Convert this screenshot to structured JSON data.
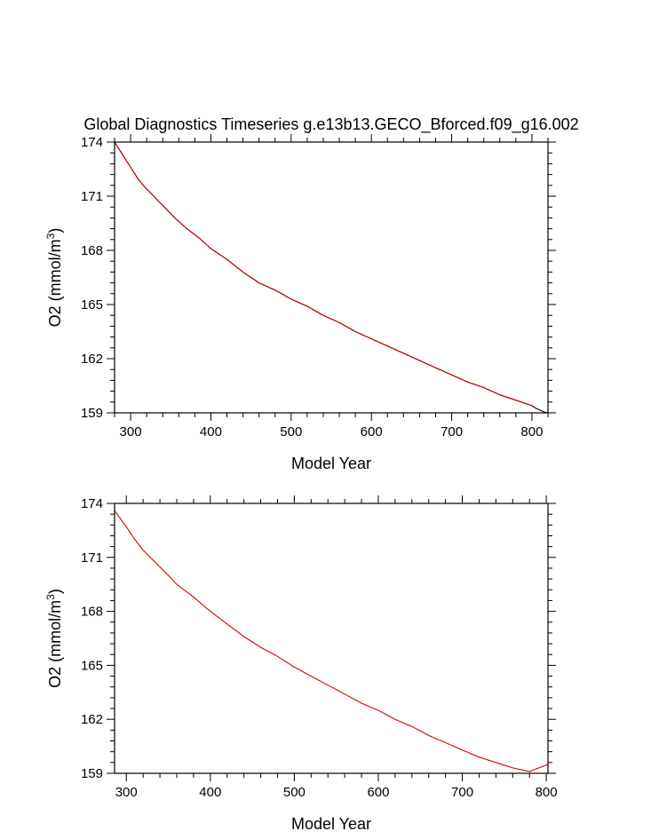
{
  "figure": {
    "title": "Global Diagnostics Timeseries g.e13b13.GECO_Bforced.f09_g16.002"
  },
  "chart_data": [
    {
      "type": "line",
      "xlabel": "Model Year",
      "ylabel_main": "O2 (mmol/m",
      "ylabel_sup": "3",
      "ylabel_tail": ")",
      "xlim": [
        280,
        820
      ],
      "ylim": [
        159,
        174
      ],
      "xticks": [
        300,
        400,
        500,
        600,
        700,
        800
      ],
      "yticks": [
        159,
        162,
        165,
        168,
        171,
        174
      ],
      "grid": false,
      "series": [
        {
          "color": "#000000",
          "x": [
            280,
            290,
            300,
            310,
            320,
            340,
            355,
            370,
            385,
            400,
            420,
            440,
            460,
            480,
            500,
            520,
            540,
            560,
            580,
            600,
            620,
            640,
            660,
            680,
            700,
            720,
            740,
            760,
            780,
            800,
            805,
            810,
            815,
            820
          ],
          "y": [
            174.0,
            173.3,
            172.6,
            171.9,
            171.4,
            170.5,
            169.8,
            169.2,
            168.7,
            168.1,
            167.5,
            166.8,
            166.2,
            165.8,
            165.3,
            164.9,
            164.4,
            164.0,
            163.5,
            163.1,
            162.7,
            162.3,
            161.9,
            161.5,
            161.1,
            160.7,
            160.4,
            160.0,
            159.7,
            159.4,
            159.25,
            159.15,
            159.05,
            159.0
          ]
        },
        {
          "color": "#cc0000",
          "x": [
            280,
            290,
            300,
            310,
            320,
            340,
            355,
            370,
            385,
            400,
            420,
            440,
            460,
            480,
            500,
            520,
            540,
            560,
            580,
            600,
            620,
            640,
            660,
            680,
            700,
            720,
            740,
            760,
            780,
            800
          ],
          "y": [
            174.0,
            173.3,
            172.6,
            171.9,
            171.4,
            170.5,
            169.8,
            169.2,
            168.7,
            168.1,
            167.5,
            166.8,
            166.2,
            165.8,
            165.3,
            164.9,
            164.4,
            164.0,
            163.5,
            163.1,
            162.7,
            162.3,
            161.9,
            161.5,
            161.1,
            160.7,
            160.4,
            160.0,
            159.7,
            159.4
          ]
        }
      ]
    },
    {
      "type": "line",
      "xlabel": "Model Year",
      "ylabel_main": "O2 (mmol/m",
      "ylabel_sup": "3",
      "ylabel_tail": ")",
      "xlim": [
        286,
        802
      ],
      "ylim": [
        159,
        174
      ],
      "xticks": [
        300,
        400,
        500,
        600,
        700,
        800
      ],
      "yticks": [
        159,
        162,
        165,
        168,
        171,
        174
      ],
      "grid": false,
      "series": [
        {
          "color": "#dd0000",
          "x": [
            286,
            300,
            310,
            320,
            335,
            350,
            360,
            380,
            400,
            420,
            440,
            460,
            480,
            500,
            520,
            540,
            560,
            580,
            600,
            620,
            640,
            660,
            680,
            700,
            720,
            740,
            760,
            780,
            802
          ],
          "y": [
            173.6,
            172.7,
            172.0,
            171.4,
            170.7,
            170.0,
            169.5,
            168.8,
            168.0,
            167.3,
            166.6,
            166.0,
            165.5,
            164.9,
            164.4,
            163.9,
            163.4,
            162.9,
            162.5,
            162.0,
            161.6,
            161.1,
            160.7,
            160.3,
            159.9,
            159.6,
            159.3,
            159.1,
            159.5
          ]
        }
      ]
    }
  ]
}
